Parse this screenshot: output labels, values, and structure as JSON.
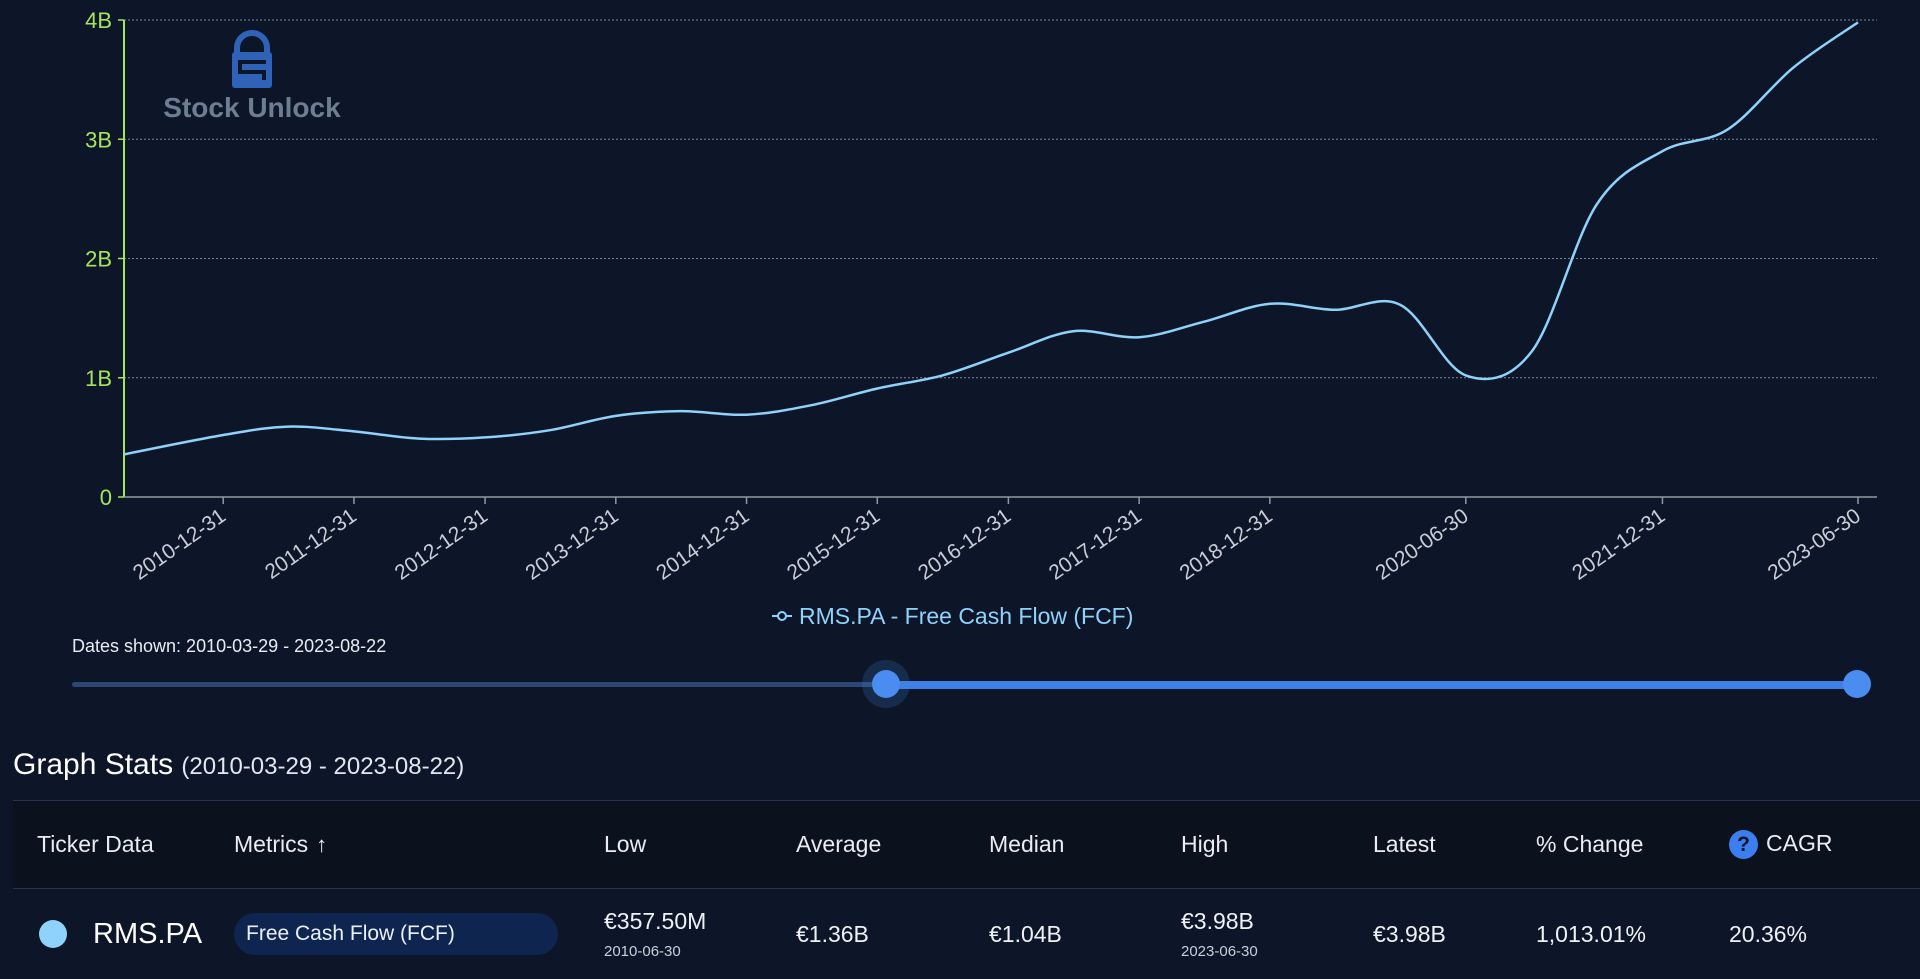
{
  "chart_data": {
    "type": "line",
    "series": [
      {
        "name": "RMS.PA - Free Cash Flow (FCF)",
        "color": "#8fd2fb",
        "points": [
          [
            "2010-03-29",
            357500000
          ],
          [
            "2010-12-31",
            520000000
          ],
          [
            "2011-06-30",
            590000000
          ],
          [
            "2011-12-31",
            550000000
          ],
          [
            "2012-06-30",
            490000000
          ],
          [
            "2012-12-31",
            500000000
          ],
          [
            "2013-06-30",
            560000000
          ],
          [
            "2013-12-31",
            680000000
          ],
          [
            "2014-06-30",
            720000000
          ],
          [
            "2014-12-31",
            690000000
          ],
          [
            "2015-06-30",
            770000000
          ],
          [
            "2015-12-31",
            910000000
          ],
          [
            "2016-06-30",
            1020000000
          ],
          [
            "2016-12-31",
            1210000000
          ],
          [
            "2017-06-30",
            1390000000
          ],
          [
            "2017-12-31",
            1340000000
          ],
          [
            "2018-06-30",
            1470000000
          ],
          [
            "2018-12-31",
            1620000000
          ],
          [
            "2019-06-30",
            1570000000
          ],
          [
            "2019-12-31",
            1610000000
          ],
          [
            "2020-06-30",
            1020000000
          ],
          [
            "2020-12-31",
            1220000000
          ],
          [
            "2021-06-30",
            2450000000
          ],
          [
            "2021-12-31",
            2900000000
          ],
          [
            "2022-06-30",
            3080000000
          ],
          [
            "2022-12-31",
            3600000000
          ],
          [
            "2023-06-30",
            3980000000
          ]
        ]
      }
    ],
    "y_ticks": [
      {
        "value": 0,
        "label": "0"
      },
      {
        "value": 1000000000,
        "label": "1B"
      },
      {
        "value": 2000000000,
        "label": "2B"
      },
      {
        "value": 3000000000,
        "label": "3B"
      },
      {
        "value": 4000000000,
        "label": "4B"
      }
    ],
    "x_ticks": [
      "2010-12-31",
      "2011-12-31",
      "2012-12-31",
      "2013-12-31",
      "2014-12-31",
      "2015-12-31",
      "2016-12-31",
      "2017-12-31",
      "2018-12-31",
      "2020-06-30",
      "2021-12-31",
      "2023-06-30"
    ],
    "xlim": [
      "2010-03-29",
      "2023-08-22"
    ],
    "ylim": [
      0,
      4000000000
    ],
    "grid": "horizontal-dotted",
    "legend": {
      "label": "RMS.PA - Free Cash Flow (FCF)",
      "placement": "bottom-center"
    },
    "axis_color": "#a7e35b",
    "grid_color": "#7c8697"
  },
  "watermark": {
    "text": "Stock Unlock",
    "icon": "lock-logo-icon"
  },
  "dates_shown": "Dates shown: 2010-03-29 - 2023-08-22",
  "slider": {
    "start_fraction": 0.455,
    "end_fraction": 1.0
  },
  "stats": {
    "title": "Graph Stats",
    "range": "(2010-03-29 - 2023-08-22)",
    "headers": {
      "ticker": "Ticker Data",
      "metrics": "Metrics",
      "low": "Low",
      "average": "Average",
      "median": "Median",
      "high": "High",
      "latest": "Latest",
      "change": "% Change",
      "cagr": "CAGR"
    },
    "row": {
      "ticker": "RMS.PA",
      "metric": "Free Cash Flow (FCF)",
      "low": "€357.50M",
      "low_date": "2010-06-30",
      "average": "€1.36B",
      "median": "€1.04B",
      "high": "€3.98B",
      "high_date": "2023-06-30",
      "latest": "€3.98B",
      "change": "1,013.01%",
      "cagr": "20.36%"
    }
  }
}
